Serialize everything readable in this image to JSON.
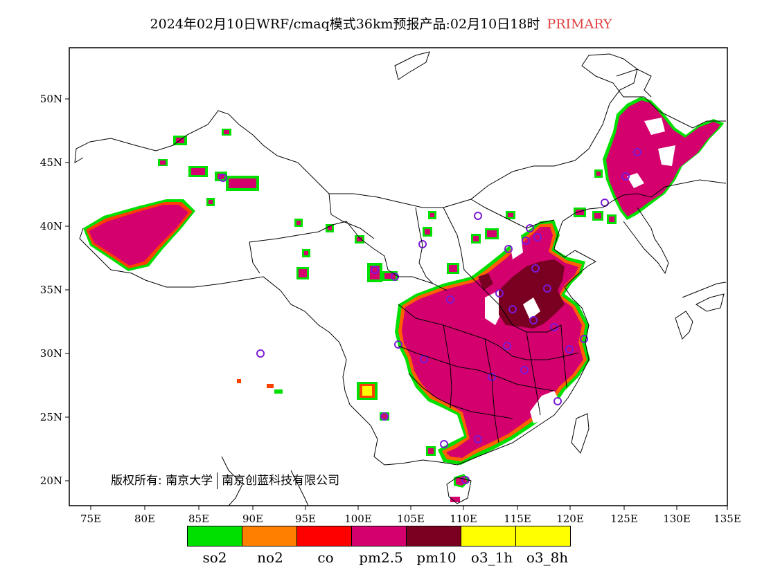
{
  "title": {
    "main": "2024年02月10日WRF/cmaq模式36km预报产品:02月10日18时",
    "tag": "PRIMARY"
  },
  "axes": {
    "x_ticks": [
      "75E",
      "80E",
      "85E",
      "90E",
      "95E",
      "100E",
      "105E",
      "110E",
      "115E",
      "120E",
      "125E",
      "130E",
      "135E"
    ],
    "y_ticks": [
      "20N",
      "25N",
      "30N",
      "35N",
      "40N",
      "45N",
      "50N"
    ]
  },
  "copyright": {
    "part1": "版权所有: 南京大学",
    "part2": "南京创蓝科技有限公司"
  },
  "legend": [
    {
      "label": "so2",
      "color": "#00e000"
    },
    {
      "label": "no2",
      "color": "#ff8000"
    },
    {
      "label": "co",
      "color": "#ff0000"
    },
    {
      "label": "pm2.5",
      "color": "#d4006e"
    },
    {
      "label": "pm10",
      "color": "#7a0022"
    },
    {
      "label": "o3_1h",
      "color": "#ffff00"
    },
    {
      "label": "o3_8h",
      "color": "#ffff00"
    }
  ]
}
